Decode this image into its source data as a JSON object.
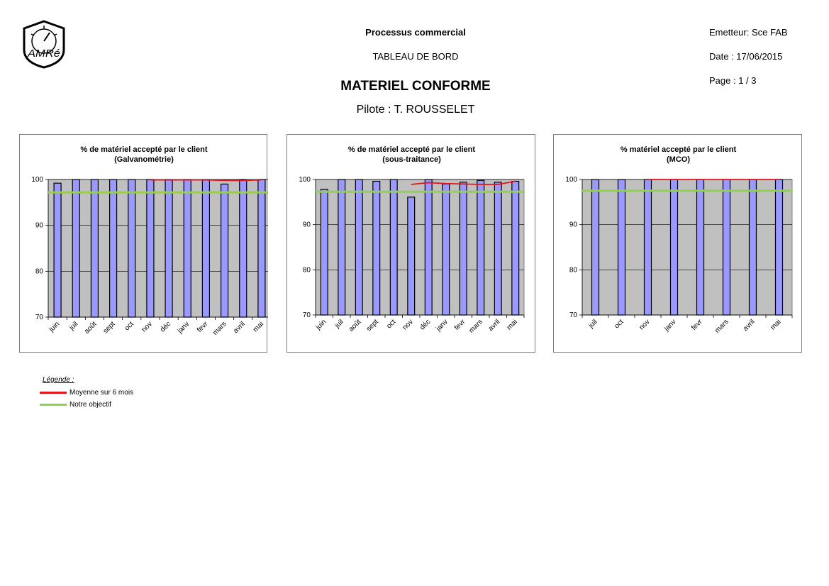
{
  "header": {
    "logo_text": "AMRé",
    "process": "Processus commercial",
    "board": "TABLEAU DE BORD",
    "main_title": "MATERIEL CONFORME",
    "pilot": "Pilote : T. ROUSSELET",
    "emitter": "Emetteur: Sce FAB",
    "date": "Date : 17/06/2015",
    "page": "Page : 1 / 3"
  },
  "legend": {
    "title": "Légende :",
    "items": [
      {
        "label": "Moyenne sur 6 mois",
        "color": "#e8141c"
      },
      {
        "label": "Notre objectif",
        "color": "#92d050"
      }
    ]
  },
  "colors": {
    "bar": "#9999ff",
    "plot_bg": "#c0c0c0",
    "average": "#e8141c",
    "target": "#92d050"
  },
  "chart_data": [
    {
      "type": "bar",
      "title": [
        "% de matériel accepté par le client",
        "(Galvanométrie)"
      ],
      "categories": [
        "juin",
        "juil",
        "août",
        "sept",
        "oct",
        "nov",
        "déc",
        "janv",
        "fevr",
        "mars",
        "avril",
        "mai"
      ],
      "values": [
        99.2,
        100,
        100,
        100,
        100,
        100,
        100,
        100,
        100,
        99.0,
        100,
        100
      ],
      "average": [
        null,
        null,
        null,
        null,
        null,
        99.9,
        99.9,
        99.9,
        99.9,
        99.8,
        99.8,
        99.9
      ],
      "target": 97.2,
      "ylim": [
        70,
        100
      ],
      "yticks": [
        70,
        80,
        90,
        100
      ]
    },
    {
      "type": "bar",
      "title": [
        "% de matériel accepté par le client",
        "(sous-traitance)"
      ],
      "categories": [
        "juin",
        "juil",
        "août",
        "sept",
        "oct",
        "nov",
        "déc",
        "janv",
        "fevr",
        "mars",
        "avril",
        "mai"
      ],
      "values": [
        97.8,
        100,
        100,
        99.6,
        100,
        96.1,
        100,
        99.0,
        99.4,
        99.8,
        99.4,
        99.6
      ],
      "average": [
        null,
        null,
        null,
        null,
        null,
        98.9,
        99.3,
        99.1,
        99.0,
        98.9,
        98.9,
        99.6
      ],
      "target": 97.3,
      "ylim": [
        70,
        100
      ],
      "yticks": [
        70,
        80,
        90,
        100
      ]
    },
    {
      "type": "bar",
      "title": [
        "% matériel accepté par le client",
        "(MCO)"
      ],
      "categories": [
        "juil",
        "oct",
        "nov",
        "janv",
        "fevr",
        "mars",
        "avril",
        "mai"
      ],
      "values": [
        100,
        100,
        100,
        100,
        100,
        100,
        100,
        100
      ],
      "average": [
        null,
        null,
        100,
        100,
        100,
        100,
        100,
        100
      ],
      "target": 97.5,
      "ylim": [
        70,
        100
      ],
      "yticks": [
        70,
        80,
        90,
        100
      ]
    }
  ]
}
